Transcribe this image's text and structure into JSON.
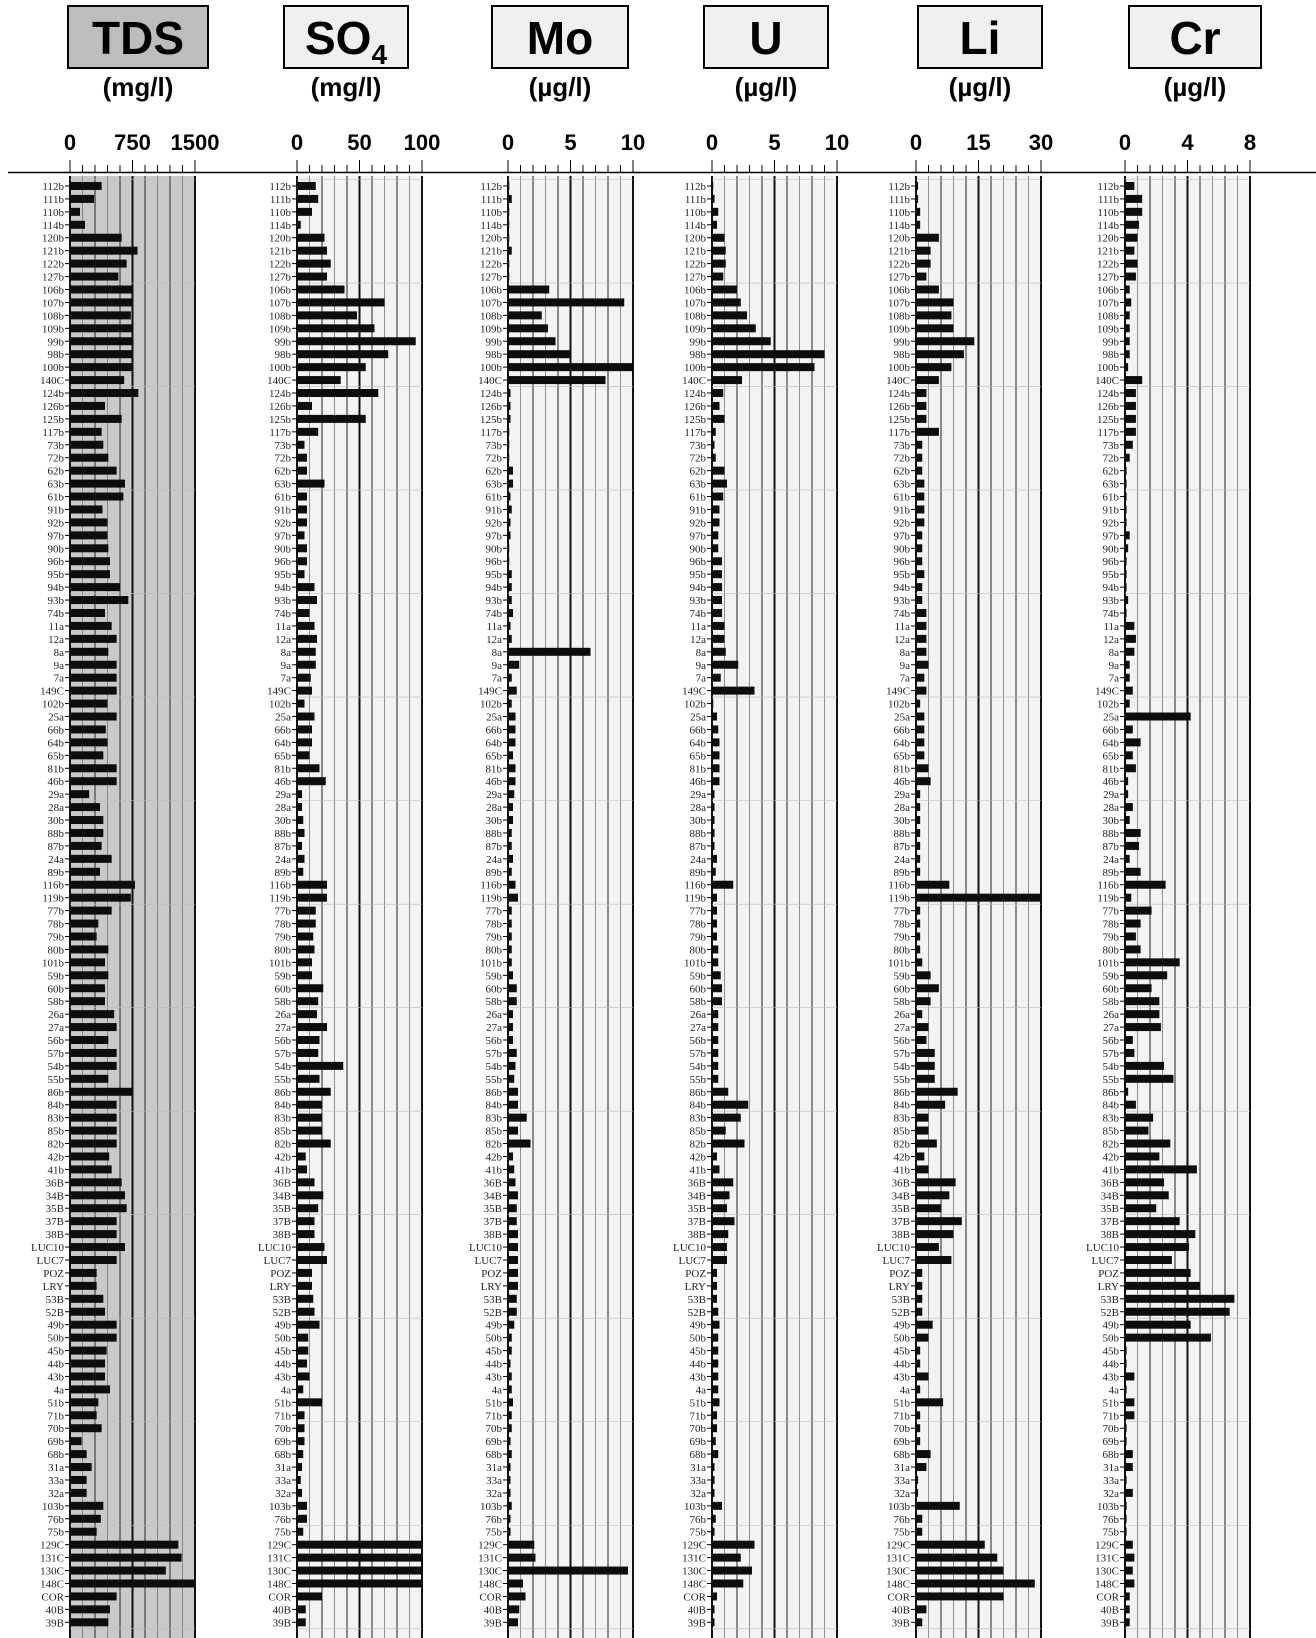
{
  "chart_data": {
    "type": "bar",
    "orientation": "horizontal",
    "samples": [
      "112b",
      "111b",
      "110b",
      "114b",
      "120b",
      "121b",
      "122b",
      "127b",
      "106b",
      "107b",
      "108b",
      "109b",
      "99b",
      "98b",
      "100b",
      "140C",
      "124b",
      "126b",
      "125b",
      "117b",
      "73b",
      "72b",
      "62b",
      "63b",
      "61b",
      "91b",
      "92b",
      "97b",
      "90b",
      "96b",
      "95b",
      "94b",
      "93b",
      "74b",
      "11a",
      "12a",
      "8a",
      "9a",
      "7a",
      "149C",
      "102b",
      "25a",
      "66b",
      "64b",
      "65b",
      "81b",
      "46b",
      "29a",
      "28a",
      "30b",
      "88b",
      "87b",
      "24a",
      "89b",
      "116b",
      "119b",
      "77b",
      "78b",
      "79b",
      "80b",
      "101b",
      "59b",
      "60b",
      "58b",
      "26a",
      "27a",
      "56b",
      "57b",
      "54b",
      "55b",
      "86b",
      "84b",
      "83b",
      "85b",
      "82b",
      "42b",
      "41b",
      "36B",
      "34B",
      "35B",
      "37B",
      "38B",
      "LUC10",
      "LUC7",
      "POZ",
      "LRY",
      "53B",
      "52B",
      "49b",
      "50b",
      "45b",
      "44b",
      "43b",
      "4a",
      "51b",
      "71b",
      "70b",
      "69b",
      "68b",
      "31a",
      "33a",
      "32a",
      "103b",
      "76b",
      "75b",
      "129C",
      "131C",
      "130C",
      "148C",
      "COR",
      "40B",
      "39B"
    ],
    "panels": [
      {
        "title": "TDS",
        "title_sub": "",
        "unit": "(mg/l)",
        "ticks": [
          "0",
          "750",
          "1500"
        ],
        "xlim": [
          0,
          1500
        ],
        "shaded": true,
        "values": [
          380,
          290,
          120,
          180,
          620,
          810,
          680,
          580,
          740,
          740,
          730,
          740,
          740,
          740,
          740,
          650,
          820,
          420,
          620,
          380,
          400,
          460,
          560,
          660,
          640,
          390,
          450,
          450,
          460,
          480,
          480,
          600,
          700,
          420,
          500,
          560,
          460,
          560,
          560,
          560,
          450,
          560,
          430,
          450,
          400,
          560,
          560,
          230,
          360,
          400,
          400,
          380,
          500,
          360,
          780,
          730,
          500,
          340,
          320,
          460,
          420,
          460,
          420,
          420,
          530,
          560,
          460,
          560,
          560,
          460,
          740,
          560,
          560,
          560,
          560,
          470,
          500,
          620,
          660,
          680,
          560,
          560,
          660,
          560,
          320,
          320,
          400,
          420,
          560,
          560,
          440,
          420,
          420,
          480,
          340,
          320,
          380,
          140,
          200,
          260,
          200,
          200,
          400,
          370,
          320,
          1300,
          1340,
          1150,
          1490,
          560,
          480,
          460
        ]
      },
      {
        "title": "SO",
        "title_sub": "4",
        "unit": "(mg/l)",
        "ticks": [
          "0",
          "50",
          "100"
        ],
        "xlim": [
          0,
          100
        ],
        "shaded": false,
        "values": [
          15,
          17,
          12,
          3,
          22,
          24,
          27,
          24,
          38,
          70,
          48,
          62,
          95,
          73,
          55,
          35,
          65,
          12,
          55,
          17,
          6,
          8,
          8,
          22,
          8,
          8,
          8,
          6,
          8,
          8,
          6,
          14,
          16,
          10,
          14,
          16,
          15,
          15,
          11,
          12,
          6,
          14,
          12,
          12,
          10,
          18,
          23,
          4,
          4,
          5,
          6,
          4,
          6,
          5,
          24,
          24,
          15,
          15,
          13,
          14,
          12,
          12,
          21,
          17,
          16,
          24,
          18,
          17,
          37,
          18,
          27,
          20,
          20,
          20,
          27,
          7,
          8,
          14,
          21,
          17,
          14,
          14,
          22,
          24,
          12,
          12,
          13,
          14,
          18,
          9,
          9,
          8,
          10,
          5,
          20,
          6,
          6,
          6,
          5,
          4,
          3,
          4,
          8,
          8,
          5,
          100,
          100,
          100,
          100,
          20,
          7,
          7
        ]
      },
      {
        "title": "Mo",
        "title_sub": "",
        "unit": "(µg/l)",
        "ticks": [
          "0",
          "5",
          "10"
        ],
        "xlim": [
          0,
          10
        ],
        "shaded": false,
        "values": [
          0.1,
          0.3,
          0.1,
          0.1,
          0.1,
          0.3,
          0.1,
          0.1,
          3.3,
          9.3,
          2.7,
          3.2,
          3.8,
          5.0,
          10.0,
          7.8,
          0.2,
          0.2,
          0.2,
          0.1,
          0.1,
          0.1,
          0.4,
          0.4,
          0.2,
          0.3,
          0.2,
          0.2,
          0.1,
          0.1,
          0.3,
          0.3,
          0.3,
          0.4,
          0.2,
          0.3,
          6.6,
          0.9,
          0.3,
          0.7,
          0.3,
          0.6,
          0.6,
          0.6,
          0.4,
          0.6,
          0.6,
          0.5,
          0.4,
          0.4,
          0.3,
          0.3,
          0.4,
          0.3,
          0.6,
          0.8,
          0.3,
          0.3,
          0.3,
          0.3,
          0.3,
          0.4,
          0.7,
          0.7,
          0.4,
          0.4,
          0.4,
          0.7,
          0.6,
          0.5,
          0.8,
          0.8,
          1.5,
          0.8,
          1.8,
          0.4,
          0.5,
          0.6,
          0.8,
          0.7,
          0.7,
          0.8,
          0.8,
          0.8,
          0.8,
          0.8,
          0.7,
          0.7,
          0.5,
          0.3,
          0.3,
          0.2,
          0.3,
          0.3,
          0.4,
          0.3,
          0.3,
          0.2,
          0.3,
          0.2,
          0.2,
          0.2,
          0.3,
          0.2,
          0.2,
          2.1,
          2.2,
          9.6,
          1.2,
          1.4,
          0.9,
          0.8
        ]
      },
      {
        "title": "U",
        "title_sub": "",
        "unit": "(µg/l)",
        "ticks": [
          "0",
          "5",
          "10"
        ],
        "xlim": [
          0,
          10
        ],
        "shaded": false,
        "values": [
          0.1,
          0.2,
          0.5,
          0.4,
          1.0,
          1.1,
          1.1,
          0.9,
          2.0,
          2.3,
          2.8,
          3.5,
          4.7,
          9.0,
          8.2,
          2.4,
          0.9,
          0.6,
          1.0,
          0.3,
          0.2,
          0.3,
          1.0,
          1.2,
          0.9,
          0.6,
          0.6,
          0.5,
          0.5,
          0.8,
          0.8,
          0.8,
          0.8,
          0.8,
          1.0,
          1.0,
          1.1,
          2.1,
          0.7,
          3.4,
          0.1,
          0.4,
          0.5,
          0.6,
          0.6,
          0.6,
          0.6,
          0.2,
          0.2,
          0.2,
          0.2,
          0.2,
          0.4,
          0.3,
          1.7,
          0.4,
          0.4,
          0.4,
          0.4,
          0.5,
          0.5,
          0.7,
          0.8,
          0.8,
          0.5,
          0.5,
          0.5,
          0.5,
          0.5,
          0.5,
          1.3,
          2.9,
          2.3,
          1.1,
          2.6,
          0.4,
          0.6,
          1.7,
          1.4,
          1.2,
          1.8,
          1.3,
          1.2,
          1.2,
          0.4,
          0.4,
          0.4,
          0.5,
          0.6,
          0.5,
          0.5,
          0.5,
          0.5,
          0.5,
          0.6,
          0.4,
          0.4,
          0.3,
          0.5,
          0.2,
          0.2,
          0.2,
          0.8,
          0.3,
          0.2,
          3.4,
          2.3,
          3.2,
          2.5,
          0.4,
          0.2,
          0.2
        ]
      },
      {
        "title": "Li",
        "title_sub": "",
        "unit": "(µg/l)",
        "ticks": [
          "0",
          "15",
          "30"
        ],
        "xlim": [
          0,
          30
        ],
        "shaded": false,
        "values": [
          0.5,
          0.5,
          1.0,
          1.0,
          5.5,
          3.5,
          3.5,
          2.5,
          5.5,
          9.0,
          8.5,
          9.0,
          14.0,
          11.5,
          8.5,
          5.5,
          2.5,
          2.5,
          2.5,
          5.5,
          1.5,
          1.5,
          1.5,
          2.0,
          2.0,
          2.0,
          2.0,
          1.5,
          1.5,
          1.5,
          2.0,
          1.5,
          1.5,
          2.5,
          2.5,
          2.5,
          2.5,
          3.0,
          2.0,
          2.5,
          1.0,
          2.0,
          2.0,
          2.0,
          2.0,
          3.0,
          3.5,
          1.0,
          1.0,
          1.0,
          1.0,
          1.0,
          1.0,
          1.0,
          8.0,
          30.0,
          1.0,
          1.0,
          1.0,
          1.0,
          1.5,
          3.5,
          5.5,
          3.5,
          1.5,
          3.0,
          2.5,
          4.5,
          4.5,
          4.5,
          10.0,
          7.0,
          3.0,
          3.0,
          5.0,
          2.0,
          3.0,
          9.5,
          8.0,
          6.0,
          11.0,
          9.0,
          5.5,
          8.5,
          1.5,
          1.5,
          1.5,
          1.5,
          4.0,
          3.0,
          1.0,
          1.0,
          3.0,
          1.0,
          6.5,
          1.0,
          1.0,
          1.0,
          3.5,
          2.5,
          0.5,
          0.5,
          10.5,
          1.5,
          1.5,
          16.5,
          19.5,
          21.0,
          28.5,
          21.0,
          2.5,
          1.5
        ]
      },
      {
        "title": "Cr",
        "title_sub": "",
        "unit": "(µg/l)",
        "ticks": [
          "0",
          "4",
          "8"
        ],
        "xlim": [
          0,
          8
        ],
        "shaded": false,
        "values": [
          0.6,
          1.1,
          1.1,
          0.9,
          0.8,
          0.6,
          0.8,
          0.7,
          0.3,
          0.4,
          0.3,
          0.3,
          0.3,
          0.3,
          0.2,
          1.1,
          0.7,
          0.7,
          0.7,
          0.7,
          0.5,
          0.3,
          0.1,
          0.1,
          0.1,
          0.1,
          0.1,
          0.3,
          0.2,
          0.1,
          0.1,
          0.1,
          0.2,
          0.1,
          0.6,
          0.7,
          0.6,
          0.3,
          0.3,
          0.5,
          0.3,
          4.2,
          0.5,
          1.0,
          0.5,
          0.7,
          0.2,
          0.2,
          0.5,
          0.3,
          1.0,
          0.9,
          0.3,
          1.0,
          2.6,
          0.4,
          1.7,
          1.0,
          0.7,
          1.0,
          3.5,
          2.7,
          1.7,
          2.2,
          2.2,
          2.3,
          0.5,
          0.6,
          2.5,
          3.1,
          0.2,
          0.7,
          1.8,
          1.5,
          2.9,
          2.2,
          4.6,
          2.5,
          2.8,
          2.0,
          3.5,
          4.5,
          4.1,
          3.0,
          4.2,
          4.8,
          7.0,
          6.7,
          4.2,
          5.5,
          0.1,
          0.1,
          0.6,
          0.1,
          0.6,
          0.6,
          0.1,
          0.1,
          0.5,
          0.5,
          0.1,
          0.5,
          0.1,
          0.1,
          0.1,
          0.5,
          0.6,
          0.5,
          0.6,
          0.3,
          0.3,
          0.3
        ]
      }
    ]
  }
}
